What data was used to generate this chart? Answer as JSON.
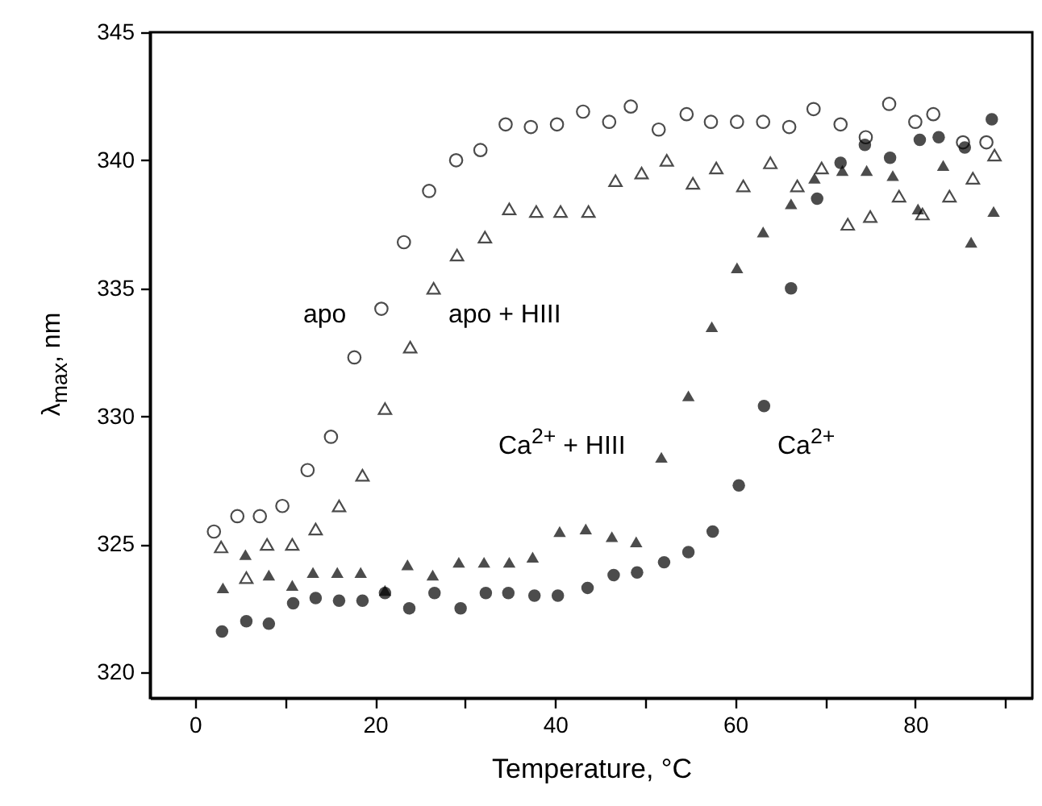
{
  "chart_data": {
    "type": "scatter",
    "xlabel": "Temperature, °C",
    "ylabel": "λ$_{max}$, nm",
    "xlim": [
      -5,
      93
    ],
    "ylim": [
      319,
      345
    ],
    "xticks": [
      0,
      {
        "value": 10,
        "label": null
      },
      20,
      {
        "value": 30,
        "label": null
      },
      40,
      {
        "value": 50,
        "label": null
      },
      60,
      {
        "value": 70,
        "label": null
      },
      80,
      {
        "value": 90,
        "label": null
      }
    ],
    "yticks": [
      320,
      325,
      330,
      335,
      340,
      345
    ],
    "grid": false,
    "series": [
      {
        "name": "apo",
        "color": "#000000",
        "marker": "circle",
        "x": [
          2.1,
          4.7,
          7.2,
          9.7,
          12.5,
          15.1,
          17.7,
          20.7,
          23.2,
          26.0,
          29.0,
          31.7,
          34.5,
          37.3,
          40.2,
          43.1,
          46.0,
          48.4,
          51.5,
          54.6,
          57.3,
          60.2,
          63.1,
          66.0,
          68.7,
          71.7,
          74.5,
          77.1,
          80.0,
          82.0,
          85.3,
          87.9
        ],
        "values": [
          325.5,
          326.1,
          326.1,
          326.5,
          327.9,
          329.2,
          332.3,
          334.2,
          336.8,
          338.8,
          340.0,
          340.4,
          341.4,
          341.3,
          341.4,
          341.9,
          341.5,
          342.1,
          341.2,
          341.8,
          341.5,
          341.5,
          341.5,
          341.3,
          342.0,
          341.4,
          340.9,
          342.2,
          341.5,
          341.8,
          340.7,
          340.7
        ]
      },
      {
        "name": "apo + HIII",
        "color": "#000000",
        "marker": "triangle",
        "x": [
          2.9,
          5.7,
          8.0,
          10.8,
          13.4,
          16.0,
          18.6,
          21.1,
          23.9,
          26.5,
          29.1,
          32.2,
          34.9,
          37.9,
          40.6,
          43.7,
          46.7,
          49.6,
          52.4,
          55.3,
          57.9,
          60.9,
          63.9,
          66.9,
          69.6,
          72.5,
          75.0,
          78.2,
          80.8,
          83.8,
          86.4,
          88.8
        ],
        "values": [
          324.9,
          323.7,
          325.0,
          325.0,
          325.6,
          326.5,
          327.7,
          330.3,
          332.7,
          335.0,
          336.3,
          337.0,
          338.1,
          338.0,
          338.0,
          338.0,
          339.2,
          339.5,
          340.0,
          339.1,
          339.7,
          339.0,
          339.9,
          339.0,
          339.7,
          337.5,
          337.8,
          338.6,
          337.9,
          338.6,
          339.3,
          340.2
        ]
      },
      {
        "name": "Ca$^{2+}$ + HIII",
        "color": "#000000",
        "marker": "triangle",
        "x": [
          3.1,
          5.6,
          8.2,
          10.8,
          13.1,
          15.8,
          18.4,
          21.1,
          23.6,
          26.4,
          29.3,
          32.1,
          34.9,
          37.5,
          40.5,
          43.4,
          46.3,
          49.0,
          51.8,
          54.8,
          57.4,
          60.2,
          63.1,
          66.2,
          68.8,
          71.9,
          74.6,
          77.5,
          80.3,
          83.1,
          86.2,
          88.7
        ],
        "values": [
          323.3,
          324.6,
          323.8,
          323.4,
          323.9,
          323.9,
          323.9,
          323.2,
          324.2,
          323.8,
          324.3,
          324.3,
          324.3,
          324.5,
          325.5,
          325.6,
          325.3,
          325.1,
          328.4,
          330.8,
          333.5,
          335.8,
          337.2,
          338.3,
          339.3,
          339.6,
          339.6,
          339.4,
          338.1,
          339.8,
          336.8,
          338.0
        ]
      },
      {
        "name": "Ca$^{2+}$",
        "color": "#000000",
        "marker": "circle",
        "x": [
          3.0,
          5.7,
          8.2,
          10.9,
          13.4,
          16.0,
          18.6,
          21.1,
          23.8,
          26.6,
          29.5,
          32.3,
          34.8,
          37.7,
          40.3,
          43.6,
          46.5,
          49.1,
          52.1,
          54.8,
          57.5,
          60.4,
          63.2,
          66.2,
          69.1,
          71.7,
          74.4,
          77.2,
          80.5,
          82.6,
          85.5,
          88.5
        ],
        "values": [
          321.6,
          322.0,
          321.9,
          322.7,
          322.9,
          322.8,
          322.8,
          323.1,
          322.5,
          323.1,
          322.5,
          323.1,
          323.1,
          323.0,
          323.0,
          323.3,
          323.8,
          323.9,
          324.3,
          324.7,
          325.5,
          327.3,
          330.4,
          335.0,
          338.5,
          339.9,
          340.6,
          340.1,
          340.8,
          340.9,
          340.5,
          341.6
        ]
      }
    ]
  }
}
